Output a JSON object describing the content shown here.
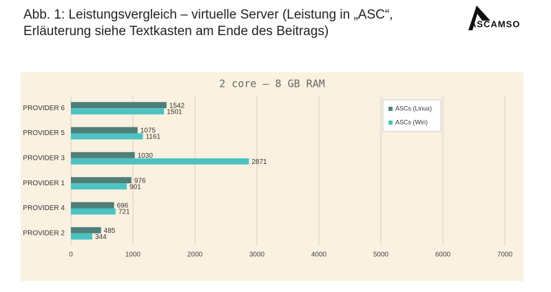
{
  "heading_lines": [
    "Abb. 1: Leistungsvergleich – virtuelle Server (Leistung in „ASC“,",
    "Erläuterung siehe Textkasten am Ende des Beitrags)"
  ],
  "logo": "ASCAMSO",
  "chart_data": {
    "type": "hbar",
    "title": "2 core – 8 GB RAM",
    "categories": [
      "PROVIDER 6",
      "PROVIDER 5",
      "PROVIDER 3",
      "PROVIDER 1",
      "PROVIDER 4",
      "PROVIDER 2"
    ],
    "series": [
      {
        "name": "ASCs (Linux)",
        "color": "#4e7f79",
        "values": [
          1542,
          1075,
          1030,
          976,
          696,
          485
        ]
      },
      {
        "name": "ASCs (Win)",
        "color": "#4cc3c1",
        "values": [
          1501,
          1161,
          2871,
          901,
          721,
          344
        ]
      }
    ],
    "xlim": [
      0,
      7000
    ],
    "xticks": [
      0,
      1000,
      2000,
      3000,
      4000,
      5000,
      6000,
      7000
    ],
    "grid": true,
    "legend": "upper right"
  }
}
